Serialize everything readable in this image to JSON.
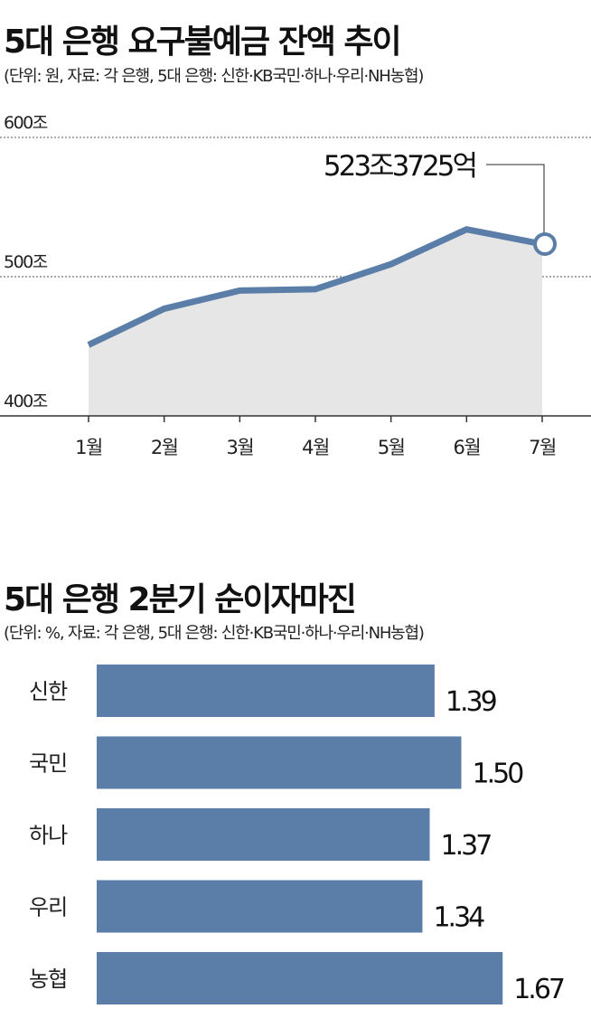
{
  "chart_data": [
    {
      "type": "line",
      "title": "5대 은행 요구불예금 잔액 추이",
      "subtitle": "(단위: 원, 자료: 각 은행, 5대 은행: 신한·KB국민·하나·우리·NH농협)",
      "categories": [
        "1월",
        "2월",
        "3월",
        "4월",
        "5월",
        "6월",
        "7월"
      ],
      "values": [
        451,
        477,
        490,
        491,
        509,
        534,
        523.4
      ],
      "ylim": [
        400,
        600
      ],
      "yticks": [
        {
          "value": 600,
          "label": "600조"
        },
        {
          "value": 500,
          "label": "500조"
        },
        {
          "value": 400,
          "label": "400조"
        }
      ],
      "annotation": "523조3725억",
      "colors": {
        "line": "#5a7ea8",
        "area": "#e6e6e6"
      }
    },
    {
      "type": "bar",
      "title": "5대 은행 2분기 순이자마진",
      "subtitle": "(단위: %, 자료: 각 은행, 5대 은행: 신한·KB국민·하나·우리·NH농협)",
      "categories": [
        "신한",
        "국민",
        "하나",
        "우리",
        "농협"
      ],
      "values": [
        1.39,
        1.5,
        1.37,
        1.34,
        1.67
      ],
      "labels": [
        "1.39",
        "1.50",
        "1.37",
        "1.34",
        "1.67"
      ],
      "colors": {
        "bar": "#5a7ea8"
      }
    }
  ]
}
